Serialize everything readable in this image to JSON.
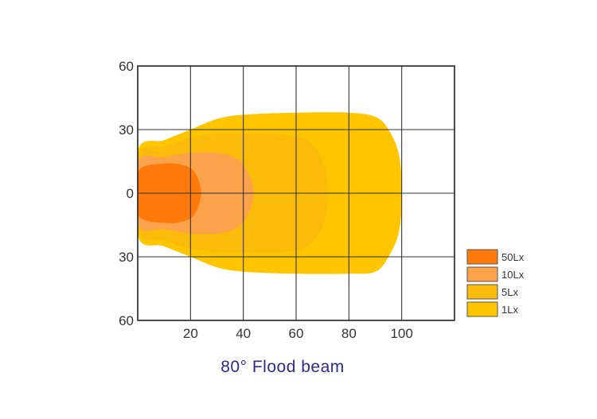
{
  "chart_data": {
    "type": "area",
    "title": "80° Flood beam",
    "xlabel": "",
    "ylabel": "",
    "x_ticks": [
      "20",
      "40",
      "60",
      "80",
      "100"
    ],
    "y_ticks": [
      "60",
      "30",
      "0",
      "30",
      "60"
    ],
    "xlim": [
      0,
      120
    ],
    "ylim": [
      -60,
      60
    ],
    "grid": true,
    "legend_position": "right",
    "series": [
      {
        "name": "1Lx",
        "color": "#ffc600",
        "outline": [
          [
            0,
            -20
          ],
          [
            10,
            -25
          ],
          [
            20,
            -30
          ],
          [
            30,
            -35
          ],
          [
            40,
            -37
          ],
          [
            60,
            -38
          ],
          [
            80,
            -38
          ],
          [
            90,
            -37
          ],
          [
            95,
            -30
          ],
          [
            99,
            -18
          ],
          [
            100,
            0
          ],
          [
            99,
            18
          ],
          [
            95,
            30
          ],
          [
            90,
            36
          ],
          [
            80,
            38
          ],
          [
            60,
            38
          ],
          [
            40,
            37
          ],
          [
            30,
            35
          ],
          [
            20,
            30
          ],
          [
            10,
            25
          ],
          [
            0,
            20
          ]
        ]
      },
      {
        "name": "5Lx",
        "color": "#fbbb0a",
        "outline": [
          [
            0,
            -18
          ],
          [
            10,
            -22
          ],
          [
            20,
            -26
          ],
          [
            30,
            -28
          ],
          [
            45,
            -28
          ],
          [
            60,
            -27
          ],
          [
            67,
            -22
          ],
          [
            71,
            -12
          ],
          [
            72,
            0
          ],
          [
            71,
            12
          ],
          [
            67,
            22
          ],
          [
            60,
            27
          ],
          [
            45,
            28
          ],
          [
            30,
            28
          ],
          [
            20,
            26
          ],
          [
            10,
            22
          ],
          [
            0,
            18
          ]
        ]
      },
      {
        "name": "10Lx",
        "color": "#fca24a",
        "outline": [
          [
            0,
            -15
          ],
          [
            10,
            -17
          ],
          [
            20,
            -19
          ],
          [
            30,
            -19
          ],
          [
            38,
            -16
          ],
          [
            42,
            -9
          ],
          [
            44,
            0
          ],
          [
            42,
            9
          ],
          [
            38,
            16
          ],
          [
            30,
            19
          ],
          [
            20,
            19
          ],
          [
            10,
            17
          ],
          [
            0,
            15
          ]
        ]
      },
      {
        "name": "50Lx",
        "color": "#ff7a0a",
        "outline": [
          [
            0,
            -10
          ],
          [
            10,
            -14
          ],
          [
            18,
            -13
          ],
          [
            22,
            -9
          ],
          [
            24,
            0
          ],
          [
            22,
            9
          ],
          [
            18,
            13
          ],
          [
            10,
            14
          ],
          [
            0,
            10
          ]
        ]
      }
    ],
    "legend": [
      {
        "label": "50Lx",
        "color": "#ff7a0a"
      },
      {
        "label": "10Lx",
        "color": "#fca24a"
      },
      {
        "label": "5Lx",
        "color": "#fbbb0a"
      },
      {
        "label": "1Lx",
        "color": "#ffc600"
      }
    ]
  }
}
